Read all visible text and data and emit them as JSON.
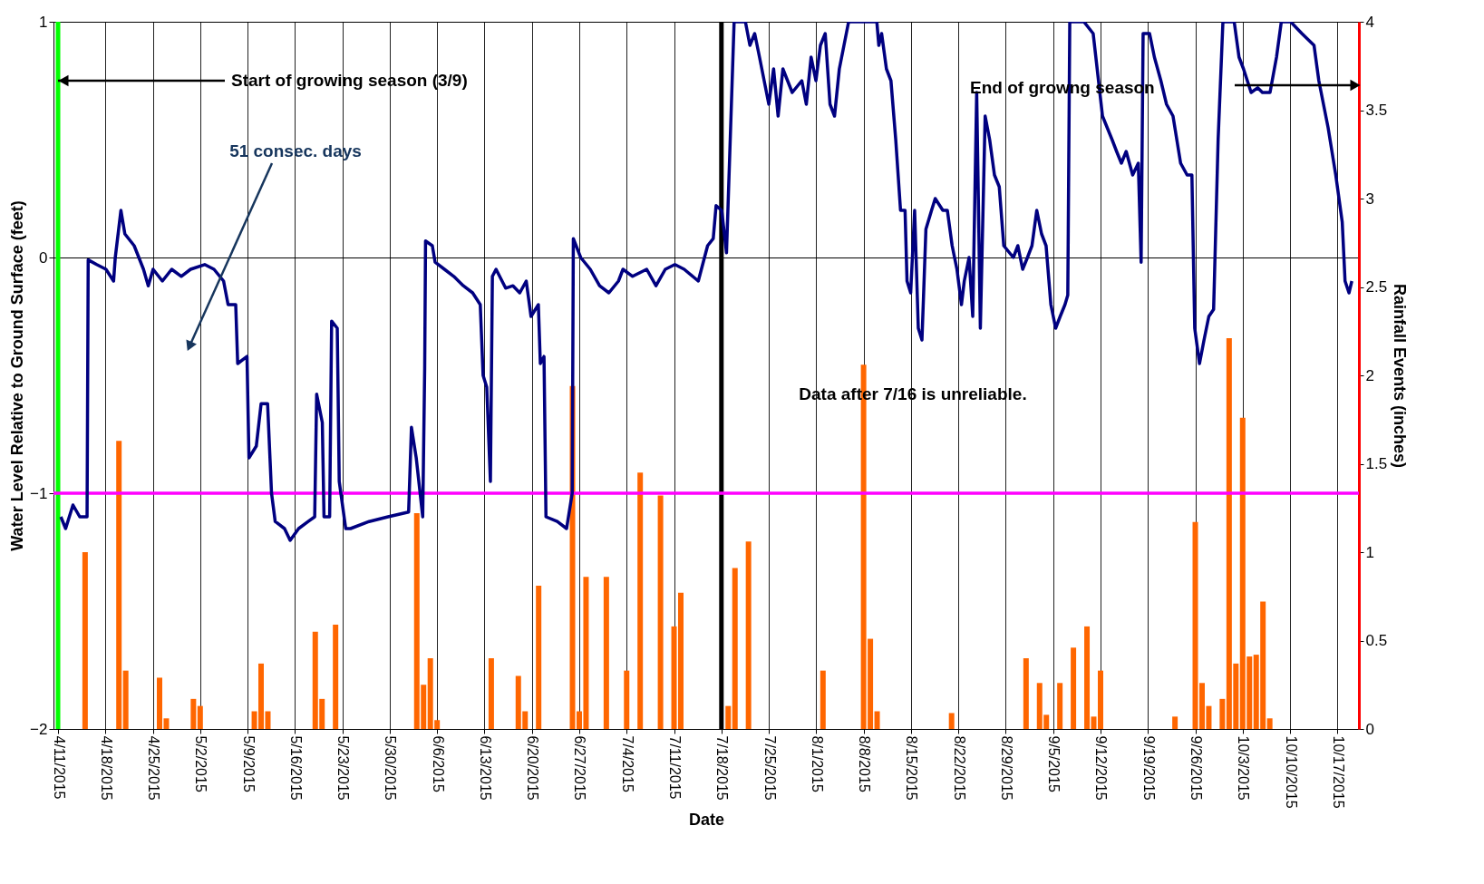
{
  "chart_data": {
    "type": "line",
    "xlabel": "Date",
    "ylabel": "Water Level Relative to Ground Surface (feet)",
    "y2label": "Rainfall Events (inches)",
    "xlim": [
      "2015-04-11",
      "2015-10-19T12:00"
    ],
    "xticks": [
      {
        "value": "2015-04-11",
        "label": "4/11/2015"
      },
      {
        "value": "2015-04-18",
        "label": "4/18/2015"
      },
      {
        "value": "2015-04-25",
        "label": "4/25/2015"
      },
      {
        "value": "2015-05-02",
        "label": "5/2/2015"
      },
      {
        "value": "2015-05-09",
        "label": "5/9/2015"
      },
      {
        "value": "2015-05-16",
        "label": "5/16/2015"
      },
      {
        "value": "2015-05-23",
        "label": "5/23/2015"
      },
      {
        "value": "2015-05-30",
        "label": "5/30/2015"
      },
      {
        "value": "2015-06-06",
        "label": "6/6/2015"
      },
      {
        "value": "2015-06-13",
        "label": "6/13/2015"
      },
      {
        "value": "2015-06-20",
        "label": "6/20/2015"
      },
      {
        "value": "2015-06-27",
        "label": "6/27/2015"
      },
      {
        "value": "2015-07-04",
        "label": "7/4/2015"
      },
      {
        "value": "2015-07-11",
        "label": "7/11/2015"
      },
      {
        "value": "2015-07-18",
        "label": "7/18/2015"
      },
      {
        "value": "2015-07-25",
        "label": "7/25/2015"
      },
      {
        "value": "2015-08-01",
        "label": "8/1/2015"
      },
      {
        "value": "2015-08-08",
        "label": "8/8/2015"
      },
      {
        "value": "2015-08-15",
        "label": "8/15/2015"
      },
      {
        "value": "2015-08-22",
        "label": "8/22/2015"
      },
      {
        "value": "2015-08-29",
        "label": "8/29/2015"
      },
      {
        "value": "2015-09-05",
        "label": "9/5/2015"
      },
      {
        "value": "2015-09-12",
        "label": "9/12/2015"
      },
      {
        "value": "2015-09-19",
        "label": "9/19/2015"
      },
      {
        "value": "2015-09-26",
        "label": "9/26/2015"
      },
      {
        "value": "2015-10-03",
        "label": "10/3/2015"
      },
      {
        "value": "2015-10-10",
        "label": "10/10/2015"
      },
      {
        "value": "2015-10-17",
        "label": "10/17/2015"
      }
    ],
    "ylim": [
      -2,
      1
    ],
    "yticks": [
      -2,
      -1,
      0,
      1
    ],
    "y2lim": [
      0,
      4
    ],
    "y2ticks": [
      0,
      0.5,
      1,
      1.5,
      2,
      2.5,
      3,
      3.5,
      4
    ],
    "grid": true,
    "series": [
      {
        "color": "#000080",
        "x": [
          "2015-04-11T10:00",
          "2015-04-12T03:00",
          "2015-04-13T05:00",
          "2015-04-14T05:00",
          "2015-04-15T07:00",
          "2015-04-15T11:00",
          "2015-04-16T17:00",
          "2015-04-18T02:00",
          "2015-04-19T05:00",
          "2015-04-19T11:00",
          "2015-04-20T07:00",
          "2015-04-20T21:00",
          "2015-04-22T06:00",
          "2015-04-23T15:00",
          "2015-04-24T08:00",
          "2015-04-25T01:00",
          "2015-04-26T10:00",
          "2015-04-27T19:00",
          "2015-04-29T05:00",
          "2015-04-30T14:00",
          "2015-05-02T16:00",
          "2015-05-04T01:00",
          "2015-05-05T11:00",
          "2015-05-06T03:00",
          "2015-05-07T06:00",
          "2015-05-07T13:00",
          "2015-05-08T22:00",
          "2015-05-09T05:00",
          "2015-05-10T07:00",
          "2015-05-11T00:00",
          "2015-05-11T23:00",
          "2015-05-12T13:00",
          "2015-05-13T02:00",
          "2015-05-14T11:00",
          "2015-05-15T07:00",
          "2015-05-16T13:00",
          "2015-05-17T23:00",
          "2015-05-18T22:00",
          "2015-05-19T05:00",
          "2015-05-20T01:00",
          "2015-05-20T07:00",
          "2015-05-21T03:00",
          "2015-05-21T10:00",
          "2015-05-22T06:00",
          "2015-05-22T13:00",
          "2015-05-23T12:00",
          "2015-05-24T05:00",
          "2015-05-26T23:00",
          "2015-05-29T18:00",
          "2015-06-01T19:00",
          "2015-06-02T05:00",
          "2015-06-02T22:00",
          "2015-06-03T21:00",
          "2015-06-04T04:00",
          "2015-06-04T07:00",
          "2015-06-05T07:00",
          "2015-06-05T17:00",
          "2015-06-07T02:00",
          "2015-06-08T11:00",
          "2015-06-09T21:00",
          "2015-06-11T06:00",
          "2015-06-12T09:00",
          "2015-06-12T19:00",
          "2015-06-13T08:00",
          "2015-06-13T21:00",
          "2015-06-14T04:00",
          "2015-06-14T17:00",
          "2015-06-16T03:00",
          "2015-06-17T05:00",
          "2015-06-18T05:00",
          "2015-06-19T04:00",
          "2015-06-19T21:00",
          "2015-06-20T23:00",
          "2015-06-21T06:00",
          "2015-06-21T19:00",
          "2015-06-22T02:00",
          "2015-06-23T18:00",
          "2015-06-25T03:00",
          "2015-06-25T23:00",
          "2015-06-26T03:00",
          "2015-06-27T05:00",
          "2015-06-28T15:00",
          "2015-06-30T00:00",
          "2015-07-01T09:00",
          "2015-07-02T19:00",
          "2015-07-03T11:00",
          "2015-07-04T21:00",
          "2015-07-06T23:00",
          "2015-07-08T08:00",
          "2015-07-09T17:00",
          "2015-07-11T03:00",
          "2015-07-12T12:00",
          "2015-07-14T14:00",
          "2015-07-15T23:00",
          "2015-07-16T19:00",
          "2015-07-17T05:00",
          "2015-07-18T01:00",
          "2015-07-18T18:00",
          "2015-07-19T21:00",
          "2015-07-21T13:00",
          "2015-07-22T05:00",
          "2015-07-22T22:00",
          "2015-07-23T15:00",
          "2015-07-25T00:00",
          "2015-07-25T17:00",
          "2015-07-26T09:00",
          "2015-07-27T02:00",
          "2015-07-28T11:00",
          "2015-07-29T21:00",
          "2015-07-30T13:00",
          "2015-07-31T06:00",
          "2015-07-31T23:00",
          "2015-08-01T15:00",
          "2015-08-02T08:00",
          "2015-08-03T01:00",
          "2015-08-03T17:00",
          "2015-08-04T10:00",
          "2015-08-05T19:00",
          "2015-08-09T23:00",
          "2015-08-10T06:00",
          "2015-08-10T16:00",
          "2015-08-11T09:00",
          "2015-08-12T01:00",
          "2015-08-12T18:00",
          "2015-08-13T11:00",
          "2015-08-14T03:00",
          "2015-08-14T10:00",
          "2015-08-14T23:00",
          "2015-08-15T13:00",
          "2015-08-16T02:00",
          "2015-08-16T15:00",
          "2015-08-17T05:00",
          "2015-08-18T01:00",
          "2015-08-18T14:00",
          "2015-08-19T17:00",
          "2015-08-20T09:00",
          "2015-08-21T02:00",
          "2015-08-21T19:00",
          "2015-08-22T11:00",
          "2015-08-22T21:00",
          "2015-08-23T14:00",
          "2015-08-24T03:00",
          "2015-08-24T17:00",
          "2015-08-25T06:00",
          "2015-08-25T23:00",
          "2015-08-26T15:00",
          "2015-08-27T08:00",
          "2015-08-28T01:00",
          "2015-08-28T17:00",
          "2015-08-30T03:00",
          "2015-08-30T19:00",
          "2015-08-31T12:00",
          "2015-09-01T05:00",
          "2015-09-01T21:00",
          "2015-09-02T14:00",
          "2015-09-03T07:00",
          "2015-09-03T23:00",
          "2015-09-04T16:00",
          "2015-09-05T09:00",
          "2015-09-06T01:00",
          "2015-09-06T18:00",
          "2015-09-07T04:00",
          "2015-09-07T11:00",
          "2015-09-09T13:00",
          "2015-09-10T22:00",
          "2015-09-12T07:00",
          "2015-09-13T17:00",
          "2015-09-14T09:00",
          "2015-09-15T02:00",
          "2015-09-15T19:00",
          "2015-09-16T18:00",
          "2015-09-17T14:00",
          "2015-09-18T00:00",
          "2015-09-18T07:00",
          "2015-09-19T06:00",
          "2015-09-19T23:00",
          "2015-09-20T22:00",
          "2015-09-21T18:00",
          "2015-09-22T17:00",
          "2015-09-23T20:00",
          "2015-09-24T19:00",
          "2015-09-25T12:00",
          "2015-09-25T22:00",
          "2015-09-26T15:00",
          "2015-09-27T07:00",
          "2015-09-28T00:00",
          "2015-09-28T17:00",
          "2015-09-29T09:00",
          "2015-09-30T02:00",
          "2015-10-01T18:00",
          "2015-10-02T11:00",
          "2015-10-03T03:00",
          "2015-10-04T06:00",
          "2015-10-05T05:00",
          "2015-10-05T22:00",
          "2015-10-07T01:00",
          "2015-10-08T00:00",
          "2015-10-08T17:00",
          "2015-10-10T02:00",
          "2015-10-11T18:00",
          "2015-10-13T13:00",
          "2015-10-14T06:00",
          "2015-10-15T15:00",
          "2015-10-16T18:00",
          "2015-10-17T17:00",
          "2015-10-18T03:00",
          "2015-10-18T17:00",
          "2015-10-19T03:00"
        ],
        "values": [
          -1.1,
          -1.15,
          -1.05,
          -1.1,
          -1.1,
          -0.01,
          -0.03,
          -0.05,
          -0.1,
          0,
          0.2,
          0.1,
          0.05,
          -0.05,
          -0.12,
          -0.05,
          -0.1,
          -0.05,
          -0.08,
          -0.05,
          -0.03,
          -0.05,
          -0.1,
          -0.2,
          -0.2,
          -0.45,
          -0.42,
          -0.85,
          -0.8,
          -0.62,
          -0.62,
          -1.0,
          -1.12,
          -1.15,
          -1.2,
          -1.15,
          -1.12,
          -1.1,
          -0.58,
          -0.7,
          -1.1,
          -1.1,
          -0.27,
          -0.3,
          -0.95,
          -1.15,
          -1.15,
          -1.12,
          -1.1,
          -1.08,
          -0.72,
          -0.85,
          -1.1,
          -0.47,
          0.07,
          0.05,
          -0.02,
          -0.05,
          -0.08,
          -0.12,
          -0.15,
          -0.2,
          -0.5,
          -0.55,
          -0.95,
          -0.08,
          -0.05,
          -0.13,
          -0.12,
          -0.15,
          -0.1,
          -0.25,
          -0.2,
          -0.45,
          -0.42,
          -1.1,
          -1.12,
          -1.15,
          -1.0,
          0.08,
          0,
          -0.05,
          -0.12,
          -0.15,
          -0.1,
          -0.05,
          -0.08,
          -0.05,
          -0.12,
          -0.05,
          -0.03,
          -0.05,
          -0.1,
          0.05,
          0.08,
          0.22,
          0.2,
          0.02,
          1.0,
          1.0,
          0.9,
          0.95,
          0.85,
          0.65,
          0.8,
          0.6,
          0.8,
          0.7,
          0.75,
          0.65,
          0.85,
          0.75,
          0.9,
          0.95,
          0.65,
          0.6,
          0.8,
          1.0,
          1.0,
          0.9,
          0.95,
          0.8,
          0.75,
          0.5,
          0.2,
          0.2,
          -0.1,
          -0.15,
          0.2,
          -0.3,
          -0.35,
          0.12,
          0.2,
          0.25,
          0.2,
          0.2,
          0.05,
          -0.05,
          -0.2,
          -0.1,
          0,
          -0.25,
          0.7,
          -0.3,
          0.6,
          0.5,
          0.35,
          0.3,
          0.05,
          0,
          0.05,
          -0.05,
          0,
          0.05,
          0.2,
          0.1,
          0.05,
          -0.2,
          -0.3,
          -0.25,
          -0.2,
          -0.16,
          1.0,
          1.0,
          0.95,
          0.6,
          0.5,
          0.45,
          0.4,
          0.45,
          0.35,
          0.4,
          -0.02,
          0.95,
          0.95,
          0.85,
          0.75,
          0.65,
          0.6,
          0.4,
          0.35,
          0.35,
          -0.3,
          -0.45,
          -0.35,
          -0.25,
          -0.22,
          0.5,
          1.0,
          1.0,
          0.85,
          0.8,
          0.7,
          0.72,
          0.7,
          0.7,
          0.85,
          1.0,
          1.0,
          0.95,
          0.9,
          0.75,
          0.55,
          0.35,
          0.15,
          -0.1,
          -0.15,
          -0.1
        ]
      },
      {
        "type": "bar",
        "axis": "y2",
        "color": "#ff6600",
        "x": [
          "2015-04-15",
          "2015-04-20",
          "2015-04-21",
          "2015-04-26",
          "2015-04-27",
          "2015-05-01",
          "2015-05-02",
          "2015-05-10",
          "2015-05-11",
          "2015-05-12",
          "2015-05-19",
          "2015-05-20",
          "2015-05-22",
          "2015-06-03",
          "2015-06-04",
          "2015-06-05",
          "2015-06-06",
          "2015-06-14",
          "2015-06-18",
          "2015-06-19",
          "2015-06-21",
          "2015-06-26",
          "2015-06-27",
          "2015-06-28",
          "2015-07-01",
          "2015-07-04",
          "2015-07-06",
          "2015-07-09",
          "2015-07-11",
          "2015-07-12",
          "2015-07-19",
          "2015-07-20",
          "2015-07-22",
          "2015-08-02",
          "2015-08-08",
          "2015-08-09",
          "2015-08-10",
          "2015-08-21",
          "2015-09-01",
          "2015-09-03",
          "2015-09-04",
          "2015-09-06",
          "2015-09-08",
          "2015-09-10",
          "2015-09-11",
          "2015-09-12",
          "2015-09-23",
          "2015-09-26",
          "2015-09-27",
          "2015-09-28",
          "2015-09-30",
          "2015-10-01",
          "2015-10-02",
          "2015-10-03",
          "2015-10-04",
          "2015-10-05",
          "2015-10-06",
          "2015-10-07"
        ],
        "values": [
          1.0,
          1.63,
          0.33,
          0.29,
          0.06,
          0.17,
          0.13,
          0.1,
          0.37,
          0.1,
          0.55,
          0.17,
          0.59,
          1.22,
          0.25,
          0.4,
          0.05,
          0.4,
          0.3,
          0.1,
          0.81,
          1.94,
          0.1,
          0.86,
          0.86,
          0.33,
          1.45,
          1.32,
          0.58,
          0.77,
          0.13,
          0.91,
          1.06,
          0.33,
          2.06,
          0.51,
          0.1,
          0.09,
          0.4,
          0.26,
          0.08,
          0.26,
          0.46,
          0.58,
          0.07,
          0.33,
          0.07,
          1.17,
          0.26,
          0.13,
          0.17,
          2.21,
          0.37,
          1.76,
          0.41,
          0.42,
          0.72,
          0.06
        ]
      }
    ],
    "ref_lines": [
      {
        "axis": "x",
        "value": "2015-04-11",
        "color": "#00ff00"
      },
      {
        "axis": "x",
        "value": "2015-07-18",
        "color": "#000000"
      },
      {
        "axis": "y",
        "value": -1,
        "color": "#ff00ff"
      }
    ],
    "annotations": [
      {
        "text": "Start of growing season (3/9)",
        "x": "2015-04-11",
        "y": 0.75
      },
      "51 consec. days",
      "Data after 7/16 is unreliable.",
      "End of growng  season"
    ]
  }
}
